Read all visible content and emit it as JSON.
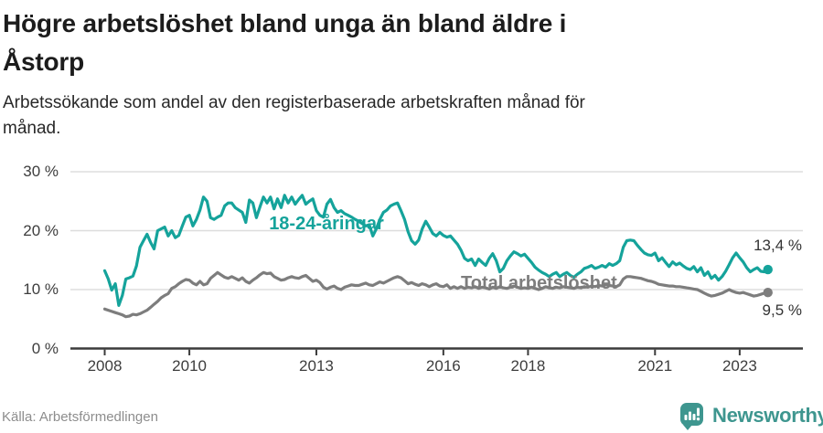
{
  "header": {
    "title": "Högre arbetslöshet bland unga än bland äldre i Åstorp",
    "title_lines": [
      "Högre arbetslöshet bland unga än bland äldre i",
      "Åstorp"
    ],
    "subtitle": "Arbetssökande som andel av den registerbaserade arbetskraften månad för månad.",
    "subtitle_lines": [
      "Arbetssökande som andel av den registerbaserade arbetskraften månad för",
      "månad."
    ]
  },
  "footer": {
    "source": "Källa: Arbetsförmedlingen",
    "brand": "Newsworthy",
    "brand_icon": "speech-bubble-bar-chart-icon"
  },
  "colors": {
    "young_line": "#15a39b",
    "total_line": "#7d7d7d",
    "grid": "#dddddd",
    "axis": "#3b3b3b",
    "brand_teal": "#3e968f",
    "title_text": "#1c1c1c",
    "end_label_text": "#333333",
    "tick_text": "#3d3d3d",
    "source_text": "#8d8d8d"
  },
  "chart_data": {
    "type": "line",
    "unit": "percent",
    "frequency": "monthly",
    "x_start": "2008-01",
    "x_end": "2023-09",
    "ylim": [
      0,
      30
    ],
    "grid": "horizontal",
    "legend_position": "inline-labels",
    "y_ticks": [
      {
        "value": 0,
        "label": "0 %"
      },
      {
        "value": 10,
        "label": "10 %"
      },
      {
        "value": 20,
        "label": "20 %"
      },
      {
        "value": 30,
        "label": "30 %"
      }
    ],
    "x_ticks": [
      {
        "year": 2008,
        "label": "2008"
      },
      {
        "year": 2010,
        "label": "2010"
      },
      {
        "year": 2013,
        "label": "2013"
      },
      {
        "year": 2016,
        "label": "2016"
      },
      {
        "year": 2018,
        "label": "2018"
      },
      {
        "year": 2021,
        "label": "2021"
      },
      {
        "year": 2023,
        "label": "2023"
      }
    ],
    "series": [
      {
        "id": "young",
        "name": "18-24-åringar",
        "color": "#15a39b",
        "end_value": 13.4,
        "end_label": "13,4 %",
        "values": [
          13.2,
          11.8,
          9.9,
          11.0,
          7.3,
          9.0,
          11.8,
          12.0,
          12.3,
          14.0,
          17.2,
          18.3,
          19.4,
          18.0,
          16.9,
          20.0,
          20.3,
          20.6,
          19.1,
          20.0,
          18.8,
          19.2,
          20.8,
          22.3,
          22.6,
          20.8,
          21.9,
          23.5,
          25.7,
          25.0,
          22.2,
          21.9,
          22.3,
          22.6,
          24.2,
          24.7,
          24.7,
          23.9,
          23.5,
          23.1,
          21.4,
          25.2,
          24.7,
          22.2,
          24.0,
          25.7,
          24.7,
          25.7,
          23.7,
          25.4,
          23.9,
          26.0,
          24.7,
          25.7,
          24.5,
          25.3,
          26.0,
          24.5,
          25.0,
          25.4,
          23.4,
          22.6,
          22.3,
          24.5,
          25.3,
          23.9,
          23.1,
          23.4,
          22.9,
          22.6,
          22.3,
          21.9,
          21.6,
          21.2,
          20.8,
          21.0,
          19.1,
          20.3,
          21.9,
          23.1,
          23.5,
          24.2,
          24.5,
          24.7,
          23.4,
          21.9,
          19.8,
          18.3,
          17.7,
          18.4,
          20.3,
          21.6,
          20.6,
          19.5,
          19.1,
          19.7,
          19.2,
          18.9,
          19.1,
          18.4,
          17.7,
          16.7,
          15.3,
          14.9,
          15.2,
          14.1,
          15.2,
          14.6,
          14.1,
          15.3,
          16.1,
          14.9,
          13.0,
          13.6,
          14.9,
          15.7,
          16.4,
          16.1,
          15.7,
          16.0,
          15.3,
          14.6,
          13.8,
          13.3,
          12.9,
          12.6,
          12.2,
          12.6,
          12.9,
          12.2,
          12.6,
          12.9,
          12.4,
          12.1,
          12.6,
          13.0,
          13.6,
          13.8,
          14.1,
          13.6,
          13.8,
          14.1,
          13.8,
          14.4,
          14.1,
          14.4,
          14.9,
          17.2,
          18.3,
          18.4,
          18.3,
          17.5,
          16.8,
          16.2,
          15.9,
          15.8,
          16.2,
          14.9,
          15.4,
          14.6,
          13.9,
          14.7,
          14.2,
          14.5,
          14.0,
          13.6,
          13.4,
          13.9,
          13.0,
          13.7,
          12.4,
          13.0,
          11.9,
          12.4,
          11.6,
          12.2,
          13.1,
          14.2,
          15.4,
          16.2,
          15.4,
          14.7,
          13.7,
          13.0,
          13.4,
          13.7,
          13.1,
          13.0,
          13.4
        ]
      },
      {
        "id": "total",
        "name": "Total arbetslöshet",
        "color": "#7d7d7d",
        "end_value": 9.5,
        "end_label": "9,5 %",
        "values": [
          6.7,
          6.5,
          6.3,
          6.1,
          5.9,
          5.7,
          5.4,
          5.5,
          5.8,
          5.7,
          5.9,
          6.2,
          6.5,
          7.0,
          7.5,
          8.0,
          8.6,
          9.0,
          9.3,
          10.2,
          10.5,
          11.0,
          11.4,
          11.7,
          11.6,
          11.1,
          10.8,
          11.4,
          10.8,
          11.0,
          11.9,
          12.4,
          12.9,
          12.5,
          12.1,
          11.9,
          12.2,
          11.9,
          11.6,
          12.0,
          11.4,
          11.1,
          11.6,
          12.0,
          12.5,
          12.9,
          12.7,
          12.8,
          12.2,
          11.9,
          11.6,
          11.7,
          12.0,
          12.2,
          12.0,
          11.9,
          12.2,
          12.4,
          11.9,
          11.4,
          11.6,
          11.2,
          10.4,
          10.1,
          10.4,
          10.6,
          10.2,
          10.0,
          10.4,
          10.6,
          10.8,
          10.7,
          10.7,
          10.9,
          11.1,
          10.8,
          10.7,
          11.0,
          11.3,
          11.1,
          11.4,
          11.7,
          12.0,
          12.2,
          12.0,
          11.5,
          11.0,
          11.2,
          10.9,
          10.7,
          11.0,
          10.8,
          10.5,
          10.8,
          11.0,
          10.6,
          10.5,
          10.8,
          10.2,
          10.5,
          10.2,
          10.5,
          10.2,
          10.4,
          10.3,
          10.5,
          10.2,
          10.4,
          10.3,
          10.1,
          10.4,
          10.2,
          10.5,
          10.3,
          10.2,
          10.4,
          10.6,
          10.4,
          10.2,
          10.3,
          10.2,
          10.4,
          10.2,
          10.0,
          10.2,
          10.5,
          10.3,
          10.2,
          10.4,
          10.3,
          10.5,
          10.4,
          10.3,
          10.2,
          10.4,
          10.3,
          10.5,
          10.4,
          10.6,
          10.5,
          10.7,
          10.6,
          10.8,
          10.7,
          10.6,
          10.5,
          10.8,
          11.8,
          12.2,
          12.2,
          12.1,
          12.0,
          11.9,
          11.7,
          11.5,
          11.4,
          11.2,
          10.9,
          10.8,
          10.7,
          10.6,
          10.6,
          10.5,
          10.5,
          10.4,
          10.3,
          10.2,
          10.1,
          10.0,
          9.7,
          9.4,
          9.1,
          8.9,
          9.0,
          9.2,
          9.4,
          9.7,
          10.0,
          9.7,
          9.5,
          9.4,
          9.5,
          9.3,
          9.1,
          8.9,
          9.0,
          9.2,
          9.4,
          9.5
        ]
      }
    ]
  }
}
